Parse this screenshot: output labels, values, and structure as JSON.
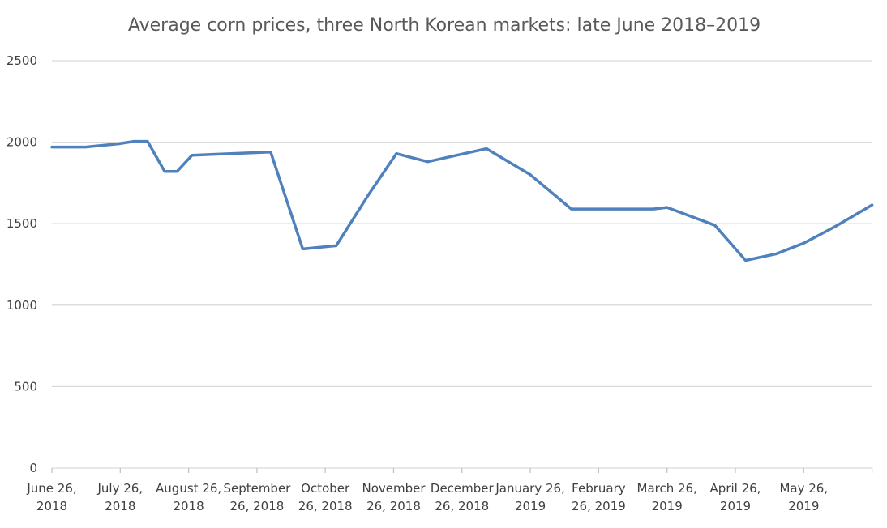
{
  "chart_data": {
    "type": "line",
    "title": "Average corn prices, three North Korean markets: late June 2018–2019",
    "xlabel": "",
    "ylabel": "",
    "ylim": [
      0,
      2500
    ],
    "yticks": [
      0,
      500,
      1000,
      1500,
      2000,
      2500
    ],
    "grid": true,
    "legend": "none",
    "colors": {
      "line": "#4f81bd",
      "grid": "#d9d9d9",
      "text": "#404040",
      "title": "#595959"
    },
    "xtick_labels": [
      [
        "June 26,",
        "2018"
      ],
      [
        "July 26,",
        "2018"
      ],
      [
        "August 26,",
        "2018"
      ],
      [
        "September",
        "26, 2018"
      ],
      [
        "October",
        "26, 2018"
      ],
      [
        "November",
        "26, 2018"
      ],
      [
        "December",
        "26, 2018"
      ],
      [
        "January 26,",
        "2019"
      ],
      [
        "February",
        "26, 2019"
      ],
      [
        "March 26,",
        "2019"
      ],
      [
        "April 26,",
        "2019"
      ],
      [
        "May 26,",
        "2019"
      ]
    ],
    "x_unit": "months since June 26, 2018",
    "x_max": 12,
    "series": [
      {
        "x": [
          0,
          0.49,
          0.97,
          1.2,
          1.4,
          1.65,
          1.83,
          2.05,
          3.2,
          3.67,
          4.16,
          4.62,
          5.04,
          5.5,
          6.36,
          7.0,
          7.6,
          8.25,
          8.8,
          9.0,
          9.7,
          10.15,
          10.6,
          11.0,
          11.45,
          12.0
        ],
        "y": [
          1970,
          1970,
          1990,
          2005,
          2005,
          1820,
          1820,
          1920,
          1940,
          1345,
          1365,
          1670,
          1930,
          1880,
          1960,
          1800,
          1590,
          1590,
          1590,
          1600,
          1490,
          1275,
          1315,
          1380,
          1480,
          1615
        ]
      }
    ]
  }
}
